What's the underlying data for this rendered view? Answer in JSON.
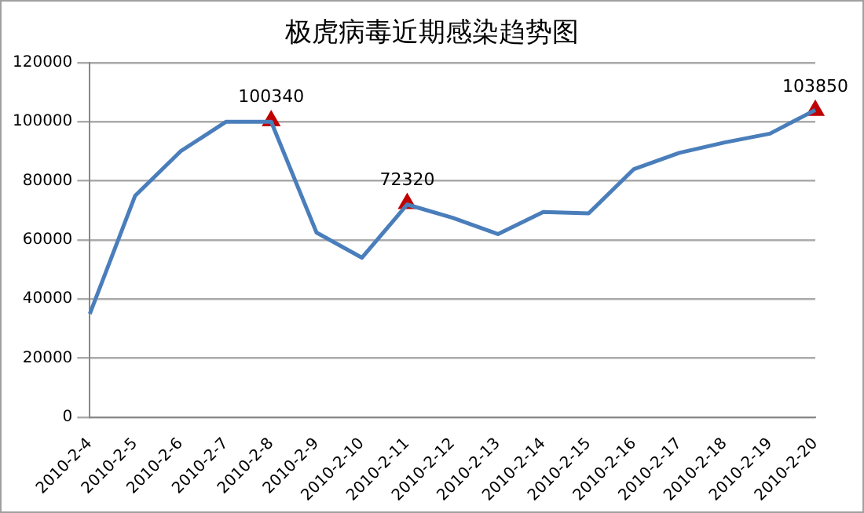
{
  "chart_data": {
    "type": "line",
    "title": "极虎病毒近期感染趋势图",
    "categories": [
      "2010-2-4",
      "2010-2-5",
      "2010-2-6",
      "2010-2-7",
      "2010-2-8",
      "2010-2-9",
      "2010-2-10",
      "2010-2-11",
      "2010-2-12",
      "2010-2-13",
      "2010-2-14",
      "2010-2-15",
      "2010-2-16",
      "2010-2-17",
      "2010-2-18",
      "2010-2-19",
      "2010-2-20"
    ],
    "series": [
      {
        "color": "#4a7ebb",
        "marker": "none",
        "values": [
          35000,
          75000,
          90000,
          100000,
          100000,
          62500,
          54000,
          72000,
          67500,
          62000,
          69500,
          69000,
          84000,
          89500,
          93000,
          96000,
          104000
        ]
      },
      {
        "type": "scatter",
        "color": "#c00000",
        "marker": "triangle",
        "x": [
          "2010-2-8",
          "2010-2-11",
          "2010-2-20"
        ],
        "values": [
          100340,
          72320,
          103850
        ],
        "value_labels": [
          "100340",
          "72320",
          "103850"
        ]
      }
    ],
    "ylim": [
      0,
      120000
    ],
    "yticks": [
      0,
      20000,
      40000,
      60000,
      80000,
      100000,
      120000
    ],
    "grid": "y",
    "legend": false
  }
}
